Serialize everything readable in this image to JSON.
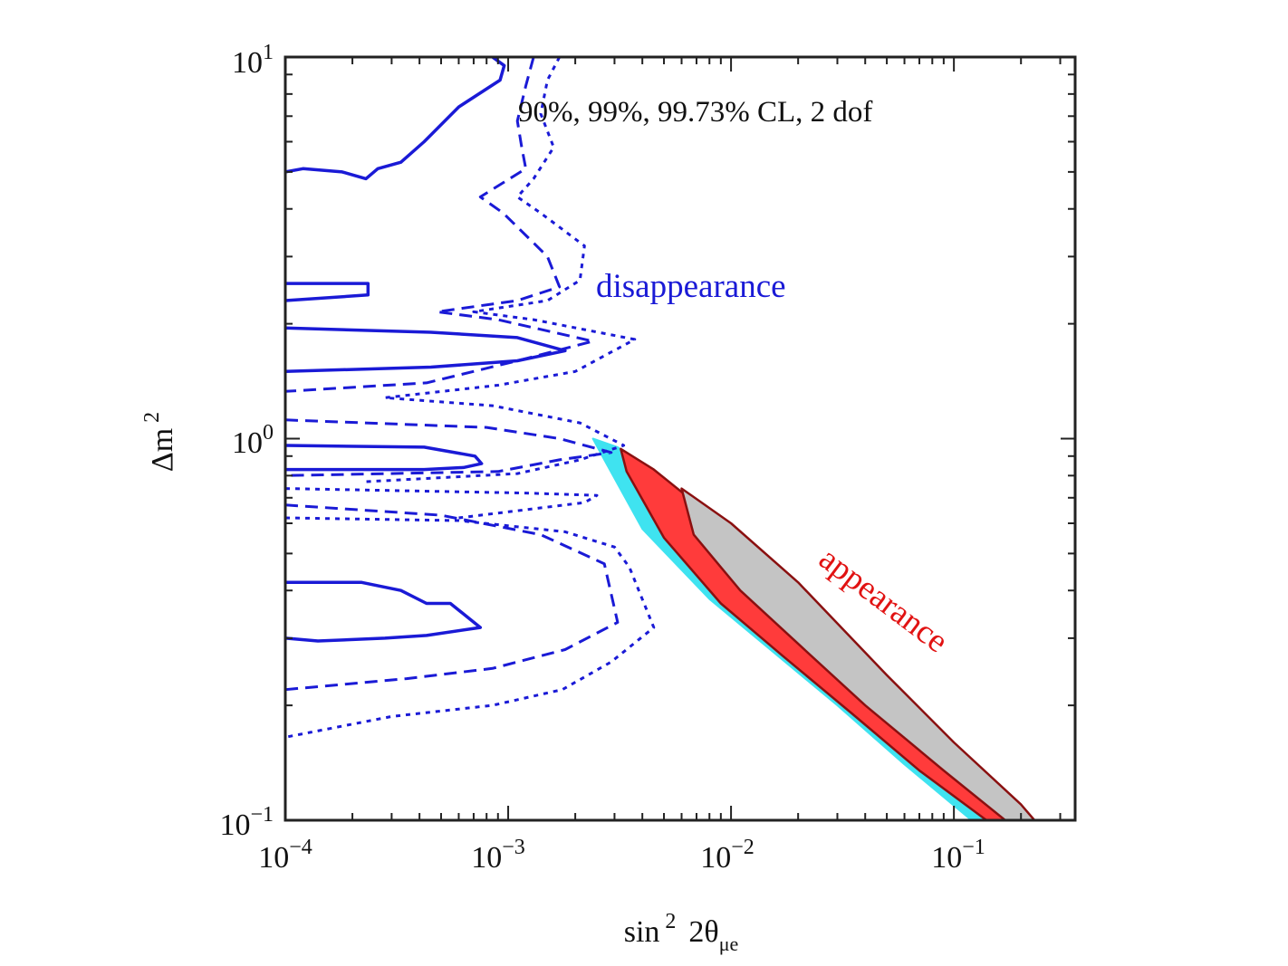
{
  "chart_data": {
    "type": "contour",
    "x_scale": "log",
    "y_scale": "log",
    "xlim": [
      0.0001,
      0.35
    ],
    "ylim": [
      0.1,
      10
    ],
    "xlabel_parts": {
      "base": "sin",
      "sup": "2",
      "mid": "2θ",
      "sub": "μe"
    },
    "ylabel_parts": {
      "base": "Δm",
      "sup": "2"
    },
    "x_ticks": [
      {
        "base": "10",
        "exp": "−4",
        "value": 0.0001
      },
      {
        "base": "10",
        "exp": "−3",
        "value": 0.001
      },
      {
        "base": "10",
        "exp": "−2",
        "value": 0.01
      },
      {
        "base": "10",
        "exp": "−1",
        "value": 0.1
      }
    ],
    "y_ticks": [
      {
        "base": "10",
        "exp": "−1",
        "value": 0.1
      },
      {
        "base": "10",
        "exp": "0",
        "value": 1
      },
      {
        "base": "10",
        "exp": "1",
        "value": 10
      }
    ],
    "annotations": {
      "cl_label": "90%, 99%, 99.73% CL, 2 dof",
      "disappearance_label": "disappearance",
      "appearance_label": "appearance"
    },
    "colors": {
      "disappearance": "#1a1ad6",
      "appearance_90": "#c4c4c4",
      "appearance_99": "#ff3b3b",
      "appearance_9973": "#3fe3f0",
      "appearance_edge": "#8a1010"
    },
    "appearance_regions": [
      {
        "cl": "99.73%",
        "points": [
          [
            0.0024,
            1.0
          ],
          [
            0.0031,
            0.95
          ],
          [
            0.0048,
            0.8
          ],
          [
            0.01,
            0.55
          ],
          [
            0.02,
            0.38
          ],
          [
            0.05,
            0.22
          ],
          [
            0.1,
            0.15
          ],
          [
            0.2,
            0.107
          ],
          [
            0.23,
            0.1
          ],
          [
            0.12,
            0.1
          ],
          [
            0.06,
            0.14
          ],
          [
            0.03,
            0.2
          ],
          [
            0.015,
            0.28
          ],
          [
            0.008,
            0.38
          ],
          [
            0.004,
            0.58
          ],
          [
            0.0027,
            0.88
          ]
        ]
      },
      {
        "cl": "99%",
        "points": [
          [
            0.0032,
            0.94
          ],
          [
            0.0045,
            0.83
          ],
          [
            0.01,
            0.57
          ],
          [
            0.02,
            0.4
          ],
          [
            0.05,
            0.23
          ],
          [
            0.1,
            0.155
          ],
          [
            0.2,
            0.108
          ],
          [
            0.225,
            0.1
          ],
          [
            0.14,
            0.1
          ],
          [
            0.07,
            0.135
          ],
          [
            0.035,
            0.19
          ],
          [
            0.017,
            0.27
          ],
          [
            0.009,
            0.37
          ],
          [
            0.005,
            0.55
          ],
          [
            0.0034,
            0.82
          ]
        ]
      },
      {
        "cl": "90%",
        "points": [
          [
            0.006,
            0.74
          ],
          [
            0.01,
            0.6
          ],
          [
            0.02,
            0.42
          ],
          [
            0.05,
            0.24
          ],
          [
            0.1,
            0.16
          ],
          [
            0.2,
            0.11
          ],
          [
            0.23,
            0.1
          ],
          [
            0.17,
            0.1
          ],
          [
            0.09,
            0.135
          ],
          [
            0.04,
            0.2
          ],
          [
            0.02,
            0.29
          ],
          [
            0.011,
            0.4
          ],
          [
            0.0068,
            0.56
          ]
        ]
      }
    ],
    "disappearance_contours": [
      {
        "cl": "90%",
        "style": "solid",
        "polylines": [
          [
            [
              0.0001,
              5.0
            ],
            [
              0.00012,
              5.1
            ],
            [
              0.00018,
              5.0
            ],
            [
              0.00023,
              4.8
            ],
            [
              0.00026,
              5.1
            ],
            [
              0.00033,
              5.3
            ],
            [
              0.00042,
              6.0
            ],
            [
              0.0006,
              7.4
            ],
            [
              0.00092,
              8.7
            ],
            [
              0.00096,
              9.5
            ],
            [
              0.00085,
              10.0
            ]
          ],
          [
            [
              0.0001,
              2.55
            ],
            [
              0.000235,
              2.55
            ],
            [
              0.000235,
              2.38
            ],
            [
              0.0001,
              2.3
            ]
          ],
          [
            [
              0.0001,
              1.95
            ],
            [
              0.00045,
              1.9
            ],
            [
              0.0011,
              1.84
            ],
            [
              0.0018,
              1.7
            ],
            [
              0.0011,
              1.6
            ],
            [
              0.00045,
              1.54
            ],
            [
              0.0001,
              1.5
            ]
          ],
          [
            [
              0.0001,
              0.96
            ],
            [
              0.00042,
              0.95
            ],
            [
              0.00071,
              0.9
            ],
            [
              0.00076,
              0.86
            ],
            [
              0.00063,
              0.84
            ],
            [
              0.00042,
              0.83
            ],
            [
              0.0001,
              0.83
            ]
          ],
          [
            [
              0.0001,
              0.42
            ],
            [
              0.00022,
              0.42
            ],
            [
              0.00033,
              0.4
            ],
            [
              0.00043,
              0.37
            ],
            [
              0.00055,
              0.37
            ],
            [
              0.00075,
              0.32
            ],
            [
              0.00043,
              0.305
            ],
            [
              0.00028,
              0.3
            ],
            [
              0.00014,
              0.295
            ],
            [
              0.0001,
              0.3
            ]
          ]
        ]
      },
      {
        "cl": "99%",
        "style": "dashed",
        "polylines": [
          [
            [
              0.0013,
              10.0
            ],
            [
              0.0012,
              8.4
            ],
            [
              0.0011,
              6.8
            ],
            [
              0.00115,
              5.8
            ],
            [
              0.0012,
              5.1
            ],
            [
              0.00075,
              4.3
            ],
            [
              0.00095,
              3.9
            ],
            [
              0.0015,
              3.0
            ],
            [
              0.0017,
              2.5
            ],
            [
              0.0011,
              2.3
            ],
            [
              0.00048,
              2.15
            ],
            [
              0.0009,
              2.05
            ],
            [
              0.0024,
              1.8
            ],
            [
              0.0011,
              1.6
            ],
            [
              0.00043,
              1.4
            ],
            [
              0.0001,
              1.33
            ]
          ],
          [
            [
              0.0001,
              1.12
            ],
            [
              0.0008,
              1.07
            ],
            [
              0.0017,
              1.0
            ],
            [
              0.0029,
              0.92
            ],
            [
              0.0017,
              0.88
            ],
            [
              0.0009,
              0.82
            ],
            [
              0.0001,
              0.8
            ]
          ],
          [
            [
              0.0001,
              0.67
            ],
            [
              0.0005,
              0.63
            ],
            [
              0.0014,
              0.56
            ],
            [
              0.0027,
              0.47
            ],
            [
              0.0031,
              0.33
            ],
            [
              0.0018,
              0.28
            ],
            [
              0.00085,
              0.25
            ],
            [
              0.00035,
              0.235
            ],
            [
              0.0001,
              0.22
            ]
          ]
        ]
      },
      {
        "cl": "99.73%",
        "style": "dotted",
        "polylines": [
          [
            [
              0.0017,
              10.0
            ],
            [
              0.0015,
              8.7
            ],
            [
              0.0014,
              7.1
            ],
            [
              0.0016,
              5.8
            ],
            [
              0.0013,
              4.8
            ],
            [
              0.0011,
              4.3
            ],
            [
              0.0014,
              3.9
            ],
            [
              0.0022,
              3.2
            ],
            [
              0.0021,
              2.6
            ],
            [
              0.0015,
              2.3
            ],
            [
              0.0007,
              2.15
            ],
            [
              0.0013,
              2.05
            ],
            [
              0.0037,
              1.82
            ],
            [
              0.002,
              1.5
            ],
            [
              0.0009,
              1.38
            ],
            [
              0.00028,
              1.28
            ],
            [
              0.00085,
              1.22
            ],
            [
              0.0021,
              1.1
            ],
            [
              0.0033,
              0.96
            ],
            [
              0.0021,
              0.88
            ],
            [
              0.0011,
              0.81
            ],
            [
              0.00022,
              0.77
            ]
          ],
          [
            [
              0.0001,
              0.74
            ],
            [
              0.0012,
              0.72
            ],
            [
              0.0025,
              0.71
            ],
            [
              0.0022,
              0.68
            ],
            [
              0.0006,
              0.62
            ]
          ],
          [
            [
              0.0001,
              0.62
            ],
            [
              0.0006,
              0.61
            ],
            [
              0.0018,
              0.57
            ],
            [
              0.003,
              0.52
            ],
            [
              0.0035,
              0.46
            ],
            [
              0.0045,
              0.32
            ],
            [
              0.0029,
              0.26
            ],
            [
              0.00175,
              0.22
            ],
            [
              0.00085,
              0.2
            ],
            [
              0.0003,
              0.187
            ],
            [
              0.0001,
              0.165
            ]
          ]
        ]
      }
    ]
  }
}
